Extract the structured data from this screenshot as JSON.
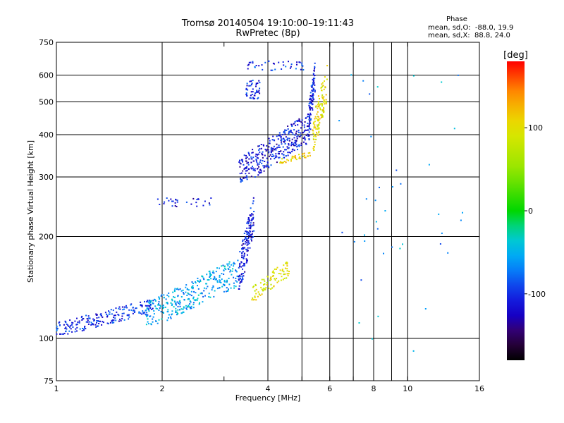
{
  "header": {
    "title": "Tromsø 20140504 19:10:00–19:11:43",
    "subtitle": "RwPretec (8p)"
  },
  "stats": {
    "heading": "Phase",
    "line1": "mean, sd,O:  -88.0, 19.9",
    "line2": "mean, sd,X:  88.8, 24.0"
  },
  "colorbar": {
    "unit_label": "[deg]",
    "range": [
      -180,
      180
    ],
    "ticks": [
      {
        "value": 100,
        "label": "100"
      },
      {
        "value": 0,
        "label": "0"
      },
      {
        "value": -100,
        "label": "-100"
      }
    ]
  },
  "chart_data": {
    "type": "scatter",
    "title": "Tromsø 20140504 19:10:00–19:11:43",
    "subtitle": "RwPretec (8p)",
    "xlabel": "Frequency [MHz]",
    "ylabel": "Stationary phase Virtual Height [km]",
    "xscale": "log",
    "yscale": "log",
    "xlim": [
      1,
      16
    ],
    "ylim": [
      75,
      750
    ],
    "xticks": [
      1,
      2,
      4,
      6,
      8,
      10,
      16
    ],
    "xtick_labels": [
      "1",
      "2",
      "4",
      "6",
      "8",
      "10",
      "16"
    ],
    "x_grid": [
      2,
      4,
      5,
      6,
      7,
      8,
      9,
      10
    ],
    "x_minor": [
      3,
      5,
      7,
      9
    ],
    "yticks": [
      75,
      100,
      200,
      300,
      400,
      500,
      600,
      750
    ],
    "ytick_labels": [
      "75",
      "100",
      "200",
      "300",
      "400",
      "500",
      "600",
      "750"
    ],
    "y_grid": [
      100,
      200,
      300,
      400,
      500,
      600
    ],
    "grid": true,
    "color_encoding": "Phase [deg]",
    "clusters": [
      {
        "name": "E-region lower trace",
        "x_range": [
          1.0,
          1.9
        ],
        "y_range": [
          103,
          130
        ],
        "phase": -100,
        "count": 220
      },
      {
        "name": "F1 lower trace",
        "x_range": [
          1.8,
          3.3
        ],
        "y_range": [
          110,
          170
        ],
        "phase": -55,
        "count": 320
      },
      {
        "name": "F1 cusp",
        "x_range": [
          3.3,
          3.65
        ],
        "y_range": [
          140,
          260
        ],
        "phase": -110,
        "count": 160
      },
      {
        "name": "F1 X-trace",
        "x_range": [
          3.6,
          4.6
        ],
        "y_range": [
          130,
          170
        ],
        "phase": 95,
        "count": 90
      },
      {
        "name": "F2 O-trace",
        "x_range": [
          3.3,
          5.3
        ],
        "y_range": [
          290,
          460
        ],
        "phase": -110,
        "count": 360
      },
      {
        "name": "F2 cusp",
        "x_range": [
          5.2,
          5.45
        ],
        "y_range": [
          400,
          650
        ],
        "phase": -105,
        "count": 90
      },
      {
        "name": "F2 X-trace",
        "x_range": [
          5.35,
          5.9
        ],
        "y_range": [
          360,
          640
        ],
        "phase": 100,
        "count": 120
      },
      {
        "name": "F2 X lower",
        "x_range": [
          4.3,
          5.3
        ],
        "y_range": [
          330,
          355
        ],
        "phase": 110,
        "count": 40
      },
      {
        "name": "Spread upper",
        "x_range": [
          3.5,
          5.1
        ],
        "y_range": [
          620,
          660
        ],
        "phase": -100,
        "count": 40
      },
      {
        "name": "Spread 500",
        "x_range": [
          3.45,
          3.8
        ],
        "y_range": [
          510,
          580
        ],
        "phase": -105,
        "count": 50
      },
      {
        "name": "Spread 250",
        "x_range": [
          1.9,
          2.8
        ],
        "y_range": [
          245,
          260
        ],
        "phase": -110,
        "count": 30
      },
      {
        "name": "Scattered",
        "x_range": [
          6.0,
          15.0
        ],
        "y_range": [
          90,
          650
        ],
        "phase": -60,
        "count": 40
      }
    ]
  }
}
